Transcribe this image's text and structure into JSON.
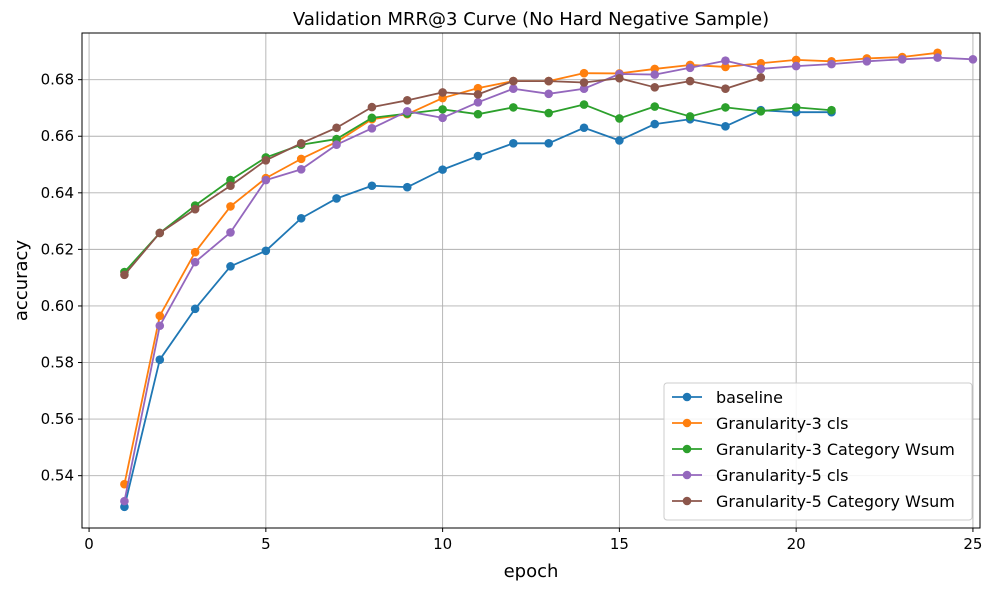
{
  "chart_data": {
    "type": "line",
    "title": "Validation MRR@3 Curve (No Hard Negative Sample)",
    "xlabel": "epoch",
    "ylabel": "accuracy",
    "xlim": [
      -0.2,
      25.2
    ],
    "ylim": [
      0.5215,
      0.6965
    ],
    "xticks": [
      0,
      5,
      10,
      15,
      20,
      25
    ],
    "yticks": [
      0.54,
      0.56,
      0.58,
      0.6,
      0.62,
      0.64,
      0.66,
      0.68
    ],
    "ytick_labels": [
      "0.54",
      "0.56",
      "0.58",
      "0.60",
      "0.62",
      "0.64",
      "0.66",
      "0.68"
    ],
    "grid": true,
    "legend_position": "lower-right",
    "series": [
      {
        "name": "baseline",
        "color": "#1f77b4",
        "x": [
          1,
          2,
          3,
          4,
          5,
          6,
          7,
          8,
          9,
          10,
          11,
          12,
          13,
          14,
          15,
          16,
          17,
          18,
          19,
          20,
          21
        ],
        "y": [
          0.529,
          0.581,
          0.599,
          0.614,
          0.6195,
          0.631,
          0.638,
          0.6425,
          0.642,
          0.6482,
          0.653,
          0.6575,
          0.6575,
          0.663,
          0.6585,
          0.6643,
          0.666,
          0.6635,
          0.6692,
          0.6685,
          0.6685
        ]
      },
      {
        "name": "Granularity-3 cls",
        "color": "#ff7f0e",
        "x": [
          1,
          2,
          3,
          4,
          5,
          6,
          7,
          8,
          9,
          10,
          11,
          12,
          13,
          14,
          15,
          16,
          17,
          18,
          19,
          20,
          21,
          22,
          23,
          24
        ],
        "y": [
          0.537,
          0.5965,
          0.619,
          0.6352,
          0.6452,
          0.652,
          0.658,
          0.666,
          0.6678,
          0.6735,
          0.677,
          0.6795,
          0.6795,
          0.6823,
          0.6822,
          0.6838,
          0.6852,
          0.6845,
          0.6858,
          0.687,
          0.6865,
          0.6875,
          0.688,
          0.6895
        ]
      },
      {
        "name": "Granularity-3 Category Wsum",
        "color": "#2ca02c",
        "x": [
          1,
          2,
          3,
          4,
          5,
          6,
          7,
          8,
          9,
          10,
          11,
          12,
          13,
          14,
          15,
          16,
          17,
          18,
          19,
          20,
          21
        ],
        "y": [
          0.612,
          0.6258,
          0.6355,
          0.6445,
          0.6525,
          0.657,
          0.659,
          0.6665,
          0.668,
          0.6695,
          0.6678,
          0.6702,
          0.6682,
          0.6712,
          0.6663,
          0.6705,
          0.667,
          0.6702,
          0.6688,
          0.6702,
          0.6692
        ]
      },
      {
        "name": "Granularity-5 cls",
        "color": "#9467bd",
        "x": [
          1,
          2,
          3,
          4,
          5,
          6,
          7,
          8,
          9,
          10,
          11,
          12,
          13,
          14,
          15,
          16,
          17,
          18,
          19,
          20,
          21,
          22,
          23,
          24,
          25
        ],
        "y": [
          0.531,
          0.593,
          0.6155,
          0.626,
          0.6445,
          0.6483,
          0.657,
          0.6628,
          0.6688,
          0.6665,
          0.672,
          0.6768,
          0.675,
          0.6768,
          0.682,
          0.6818,
          0.6842,
          0.6867,
          0.6838,
          0.6848,
          0.6855,
          0.6865,
          0.6872,
          0.6878,
          0.6872
        ]
      },
      {
        "name": "Granularity-5 Category Wsum",
        "color": "#8c564b",
        "x": [
          1,
          2,
          3,
          4,
          5,
          6,
          7,
          8,
          9,
          10,
          11,
          12,
          13,
          14,
          15,
          16,
          17,
          18,
          19
        ],
        "y": [
          0.611,
          0.6258,
          0.6342,
          0.6425,
          0.6515,
          0.6575,
          0.663,
          0.6703,
          0.6727,
          0.6755,
          0.6748,
          0.6795,
          0.6795,
          0.679,
          0.6805,
          0.6773,
          0.6795,
          0.6768,
          0.6808
        ]
      }
    ]
  }
}
